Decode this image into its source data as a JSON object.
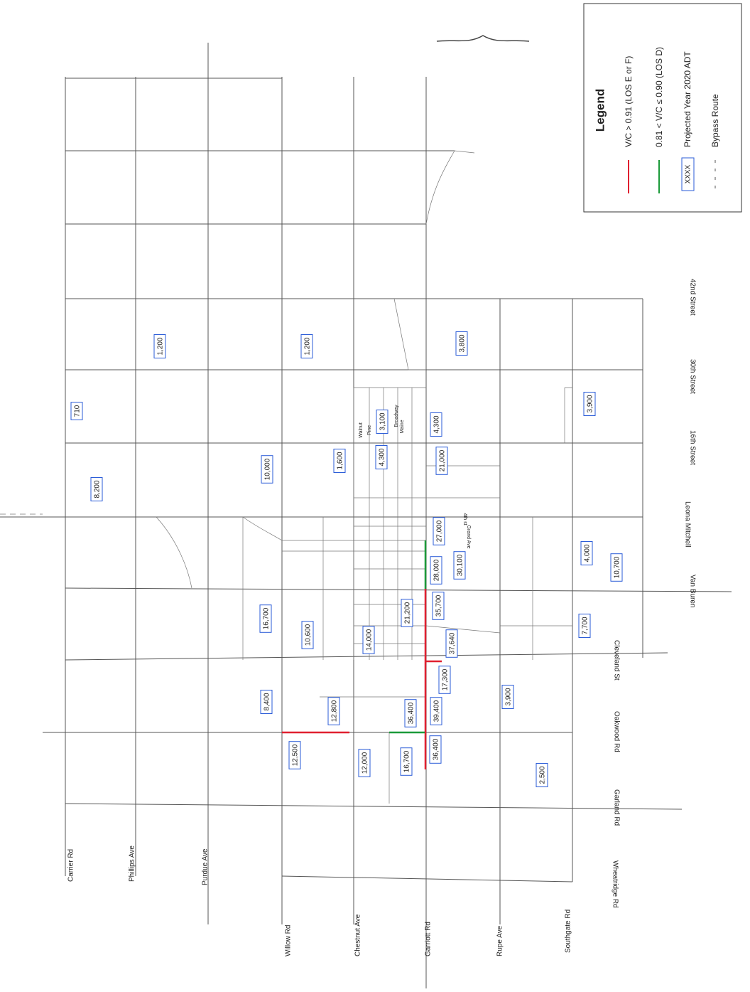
{
  "legend": {
    "title": "Legend",
    "items": [
      "V/C > 0.91 (LOS E or F)",
      "0.81 < V/C ≤ 0.90 (LOS D)",
      "Projected Year 2020 ADT",
      "Bypass Route"
    ],
    "sample_label": "XXXX"
  },
  "streets": {
    "north_south": [
      "Carrier Rd",
      "Phillips Ave",
      "Purdue Ave",
      "Willow Rd",
      "Chestnut Ave",
      "Garriott Rd",
      "Rupe Ave",
      "Southgate Rd"
    ],
    "east_west": [
      "42nd Street",
      "30th Street",
      "16th Street",
      "Leona Mitchell",
      "Van Buren",
      "Cleveland St",
      "Oakwood Rd",
      "Garland Rd",
      "Wheatridge Rd"
    ],
    "downtown": [
      "Walnut",
      "Pine",
      "Broadway",
      "Maine",
      "4th st",
      "Grand Ave"
    ]
  },
  "adt_labels": [
    "1,200",
    "1,200",
    "3,800",
    "710",
    "3,900",
    "3,100",
    "4,300",
    "8,200",
    "10,000",
    "1,600",
    "4,300",
    "21,000",
    "27,000",
    "4,000",
    "28,000",
    "30,100",
    "10,700",
    "16,700",
    "21,200",
    "35,700",
    "10,600",
    "14,000",
    "7,700",
    "37,640",
    "17,300",
    "8,400",
    "12,800",
    "36,400",
    "39,400",
    "3,900",
    "12,500",
    "12,000",
    "16,700",
    "36,400",
    "2,500"
  ]
}
